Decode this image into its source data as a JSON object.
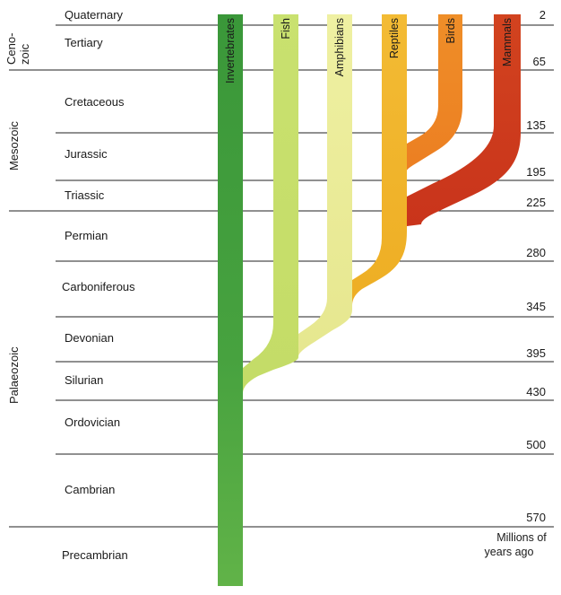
{
  "eras": [
    {
      "id": "cenozoic",
      "line1": "Ceno-",
      "line2": "zoic"
    },
    {
      "id": "mesozoic",
      "label": "Mesozoic"
    },
    {
      "id": "palaeozoic",
      "label": "Palaeozoic"
    }
  ],
  "periods": [
    "Quaternary",
    "Tertiary",
    "Cretaceous",
    "Jurassic",
    "Triassic",
    "Permian",
    "Carboniferous",
    "Devonian",
    "Silurian",
    "Ordovician",
    "Cambrian",
    "Precambrian"
  ],
  "ages": [
    "2",
    "65",
    "135",
    "195",
    "225",
    "280",
    "345",
    "395",
    "430",
    "500",
    "570"
  ],
  "axis_title": {
    "line1": "Millions of",
    "line2": "years ago"
  },
  "lineages": [
    {
      "name": "Invertebrates",
      "color": "#3f9a3c",
      "color_top": "#3c9a3a",
      "color_bottom": "#5cb045"
    },
    {
      "name": "Fish",
      "color": "#c5dc68"
    },
    {
      "name": "Amphibians",
      "color": "#ecec9a"
    },
    {
      "name": "Reptiles",
      "color": "#f1b329"
    },
    {
      "name": "Birds",
      "color": "#ee8a26"
    },
    {
      "name": "Mammals",
      "color": "#cf3b1d"
    }
  ]
}
